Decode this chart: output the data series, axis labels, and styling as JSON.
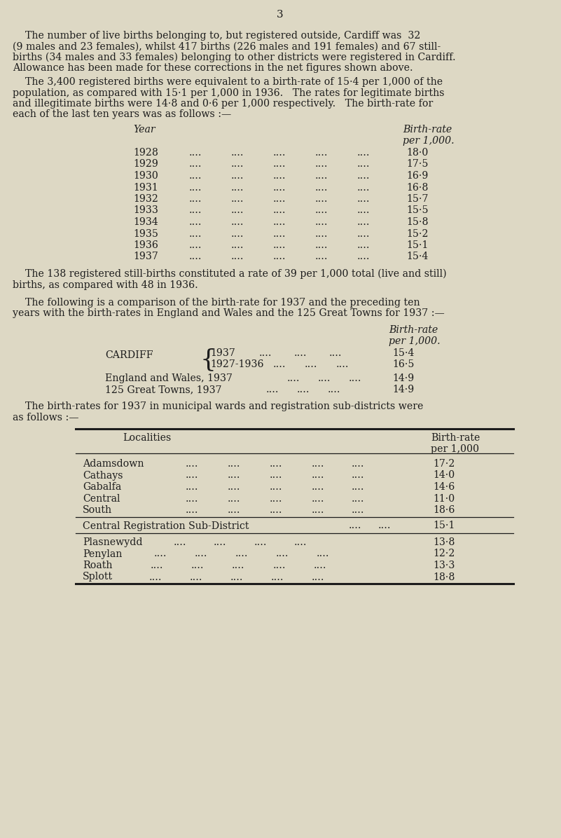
{
  "bg_color": "#ddd8c4",
  "text_color": "#1c1c1c",
  "page_number": "3",
  "para1_lines": [
    "    The number of live births belonging to, but registered outside, Cardiff was  32",
    "(9 males and 23 females), whilst 417 births (226 males and 191 females) and 67 still-",
    "births (34 males and 33 females) belonging to other districts were registered in Cardiff.",
    "Allowance has been made for these corrections in the net figures shown above."
  ],
  "para2_lines": [
    "    The 3,400 registered births were equivalent to a birth-rate of 15·4 per 1,000 of the",
    "population, as compared with 15·1 per 1,000 in 1936.   The rates for legitimate births",
    "and illegitimate births were 14·8 and 0·6 per 1,000 respectively.   The birth-rate for",
    "each of the last ten years was as follows :—"
  ],
  "t1_col1_label": "Year",
  "t1_col2_label1": "Birth-rate",
  "t1_col2_label2": "per 1,000.",
  "table1_rows": [
    [
      "1928",
      "18·0"
    ],
    [
      "1929",
      "17·5"
    ],
    [
      "1930",
      "16·9"
    ],
    [
      "1931",
      "16·8"
    ],
    [
      "1932",
      "15·7"
    ],
    [
      "1933",
      "15·5"
    ],
    [
      "1934",
      "15·8"
    ],
    [
      "1935",
      "15·2"
    ],
    [
      "1936",
      "15·1"
    ],
    [
      "1937",
      "15·4"
    ]
  ],
  "para3_lines": [
    "    The 138 registered still-births constituted a rate of 39 per 1,000 total (live and still)",
    "births, as compared with 48 in 1936."
  ],
  "para4_lines": [
    "    The following is a comparison of the birth-rate for 1937 and the preceding ten",
    "years with the birth-rates in England and Wales and the 125 Great Towns for 1937 :—"
  ],
  "t2_col2_label1": "Birth-rate",
  "t2_col2_label2": "per 1,000.",
  "t2_cardiff": "CARDIFF",
  "t2_row1_year": "1937",
  "t2_row1_val": "15·4",
  "t2_row2_year": "1927-1936",
  "t2_row2_val": "16·5",
  "t2_row3_label": "England and Wales, 1937",
  "t2_row3_val": "14·9",
  "t2_row4_label": "125 Great Towns, 1937",
  "t2_row4_val": "14·9",
  "para5_lines": [
    "    The birth-rates for 1937 in municipal wards and registration sub-districts were",
    "as follows :—"
  ],
  "t3_col1_label": "Localities",
  "t3_col2_label1": "Birth-rate",
  "t3_col2_label2": "per 1,000",
  "t3_group1": [
    [
      "Adamsdown",
      "17·2"
    ],
    [
      "Cathays",
      "14·0"
    ],
    [
      "Gabalfa",
      "14·6"
    ],
    [
      "Central",
      "11·0"
    ],
    [
      "South",
      "18·6"
    ]
  ],
  "t3_sep_label": "Central Registration Sub-District",
  "t3_sep_val": "15·1",
  "t3_group3": [
    [
      "Plasnewydd",
      "13·8"
    ],
    [
      "Penylan",
      "12·2"
    ],
    [
      "Roath",
      "13·3"
    ],
    [
      "Splott",
      "18·8"
    ]
  ],
  "dots4": "....",
  "dots5": "....."
}
